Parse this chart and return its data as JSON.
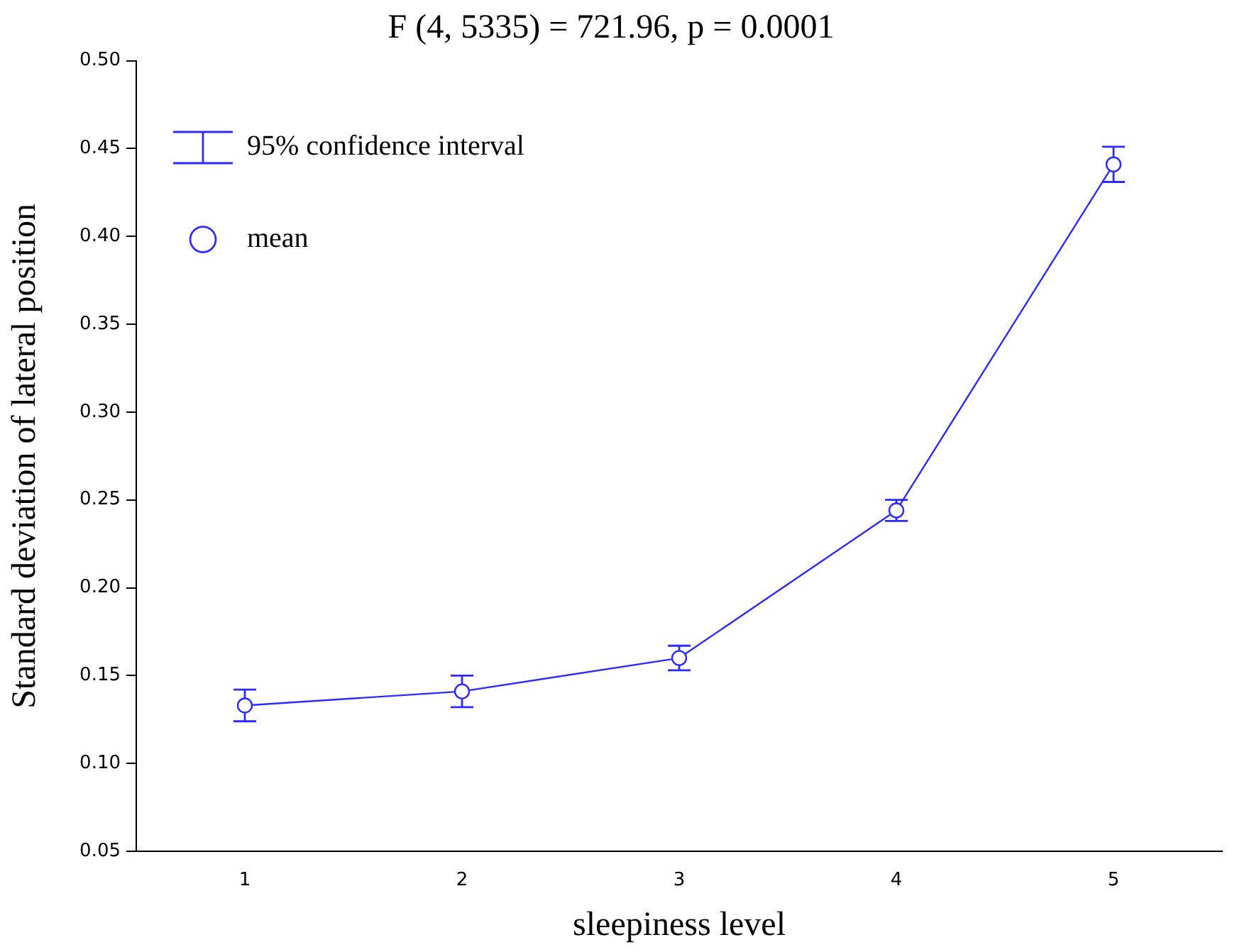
{
  "chart_data": {
    "type": "line",
    "title": "F (4, 5335) = 721.96, p = 0.0001",
    "xlabel": "sleepiness level",
    "ylabel": "Standard deviation of lateral position",
    "categories": [
      "1",
      "2",
      "3",
      "4",
      "5"
    ],
    "series": [
      {
        "name": "mean",
        "color": "#2b2bff",
        "values": [
          0.133,
          0.141,
          0.16,
          0.244,
          0.441
        ],
        "errors": [
          0.009,
          0.009,
          0.007,
          0.006,
          0.01
        ]
      }
    ],
    "annotations": [
      "95% confidence interval"
    ],
    "ylim": [
      0.05,
      0.5
    ],
    "yticks": [
      {
        "value": 0.05,
        "label": "0.05"
      },
      {
        "value": 0.1,
        "label": "0.10"
      },
      {
        "value": 0.15,
        "label": "0.15"
      },
      {
        "value": 0.2,
        "label": "0.20"
      },
      {
        "value": 0.25,
        "label": "0.25"
      },
      {
        "value": 0.3,
        "label": "0.30"
      },
      {
        "value": 0.35,
        "label": "0.35"
      },
      {
        "value": 0.4,
        "label": "0.40"
      },
      {
        "value": 0.45,
        "label": "0.45"
      },
      {
        "value": 0.5,
        "label": "0.50"
      }
    ],
    "grid": false,
    "legend": "top left",
    "marker": "circle",
    "line_style": "solid"
  }
}
